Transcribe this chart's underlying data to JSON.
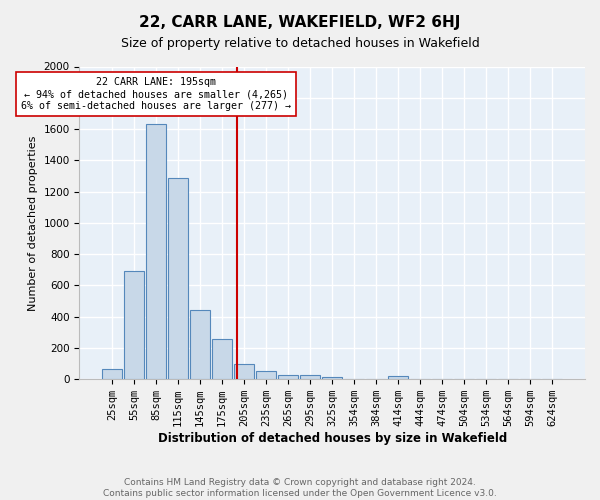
{
  "title": "22, CARR LANE, WAKEFIELD, WF2 6HJ",
  "subtitle": "Size of property relative to detached houses in Wakefield",
  "xlabel": "Distribution of detached houses by size in Wakefield",
  "ylabel": "Number of detached properties",
  "footnote": "Contains HM Land Registry data © Crown copyright and database right 2024.\nContains public sector information licensed under the Open Government Licence v3.0.",
  "bar_labels": [
    "25sqm",
    "55sqm",
    "85sqm",
    "115sqm",
    "145sqm",
    "175sqm",
    "205sqm",
    "235sqm",
    "265sqm",
    "295sqm",
    "325sqm",
    "354sqm",
    "384sqm",
    "414sqm",
    "444sqm",
    "474sqm",
    "504sqm",
    "534sqm",
    "564sqm",
    "594sqm",
    "624sqm"
  ],
  "bar_values": [
    68,
    695,
    1630,
    1285,
    440,
    255,
    95,
    50,
    30,
    25,
    15,
    0,
    0,
    20,
    0,
    0,
    0,
    0,
    0,
    0,
    0
  ],
  "bar_color": "#c8d8e8",
  "bar_edge_color": "#5588bb",
  "bg_color": "#e8f0f8",
  "grid_color": "#ffffff",
  "vline_x": 5.68,
  "vline_color": "#cc0000",
  "annotation_text": "22 CARR LANE: 195sqm\n← 94% of detached houses are smaller (4,265)\n6% of semi-detached houses are larger (277) →",
  "annotation_box_color": "#ffffff",
  "annotation_box_edge": "#cc0000",
  "ylim": [
    0,
    2000
  ],
  "yticks": [
    0,
    200,
    400,
    600,
    800,
    1000,
    1200,
    1400,
    1600,
    1800,
    2000
  ],
  "title_fontsize": 11,
  "subtitle_fontsize": 9,
  "ylabel_fontsize": 8,
  "xlabel_fontsize": 8.5,
  "tick_fontsize": 7.5,
  "footnote_fontsize": 6.5,
  "footnote_color": "#666666"
}
